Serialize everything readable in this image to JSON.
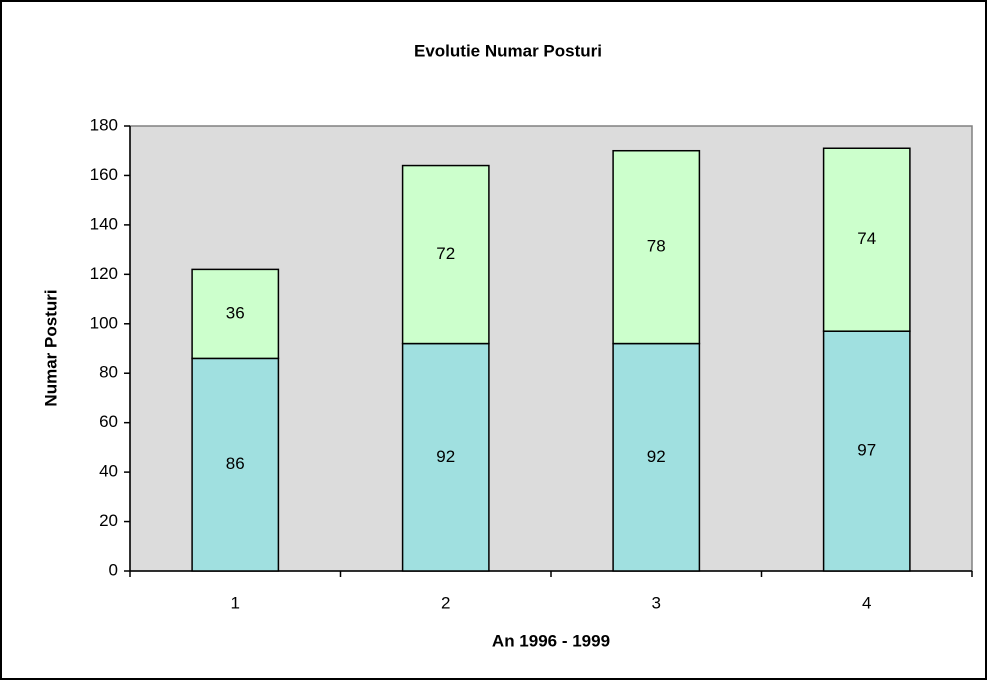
{
  "chart_data": {
    "type": "stacked-bar",
    "title": "Evolutie Numar Posturi",
    "x_label": "An 1996 - 1999",
    "y_label": "Numar Posturi",
    "categories": [
      "1",
      "2",
      "3",
      "4"
    ],
    "series": [
      {
        "color": "#a0e0e0",
        "values": [
          86,
          92,
          92,
          97
        ]
      },
      {
        "color": "#ccffcc",
        "values": [
          36,
          72,
          78,
          74
        ]
      }
    ],
    "ylim": [
      0,
      180
    ],
    "yticks": [
      0,
      20,
      40,
      60,
      80,
      100,
      120,
      140,
      160,
      180
    ],
    "plot_background": "#dcdcdc"
  }
}
